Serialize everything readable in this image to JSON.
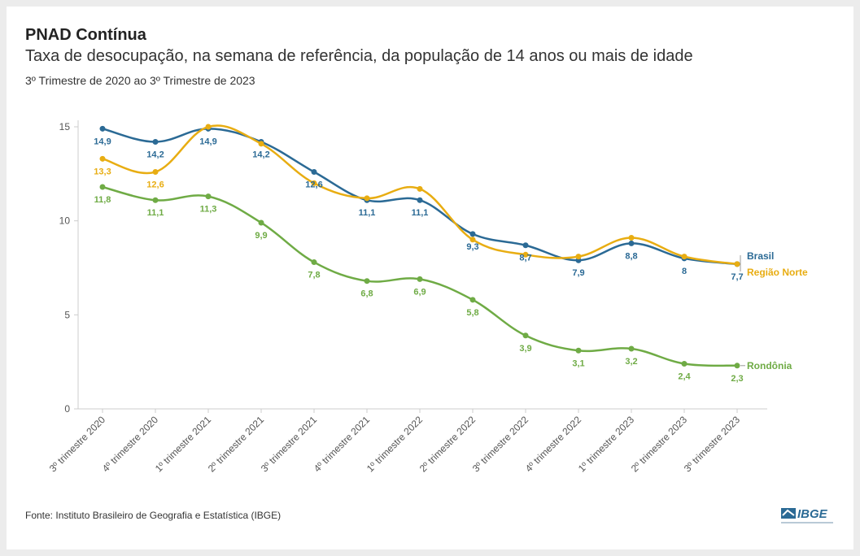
{
  "header": {
    "title": "PNAD Contínua",
    "subtitle": "Taxa de desocupação, na semana de referência, da população de 14 anos ou mais de idade",
    "period": "3º Trimestre de 2020 ao 3º Trimestre de 2023"
  },
  "footer": {
    "source": "Fonte: Instituto Brasileiro de Geografia e Estatística (IBGE)",
    "logo_text": "IBGE"
  },
  "chart_data": {
    "type": "line",
    "categories": [
      "3º trimestre 2020",
      "4º trimestre 2020",
      "1º trimestre 2021",
      "2º trimestre 2021",
      "3º trimestre 2021",
      "4º trimestre 2021",
      "1º trimestre 2022",
      "2º trimestre 2022",
      "3º trimestre 2022",
      "4º trimestre 2022",
      "1º trimestre 2023",
      "2º trimestre 2023",
      "3º trimestre 2023"
    ],
    "ylim": [
      0,
      15
    ],
    "yticks": [
      0,
      5,
      10,
      15
    ],
    "series": [
      {
        "name": "Brasil",
        "color": "#2b6a95",
        "values": [
          14.9,
          14.2,
          14.9,
          14.2,
          12.6,
          11.1,
          11.1,
          9.3,
          8.7,
          7.9,
          8.8,
          8.0,
          7.7
        ],
        "labels": [
          "14,9",
          "14,2",
          "14,9",
          "14,2",
          "12,6",
          "11,1",
          "11,1",
          "9,3",
          "8,7",
          "7,9",
          "8,8",
          "8",
          "7,7"
        ]
      },
      {
        "name": "Região Norte",
        "color": "#e8ad12",
        "values": [
          13.3,
          12.6,
          15.0,
          14.1,
          12.0,
          11.2,
          11.7,
          9.0,
          8.2,
          8.1,
          9.1,
          8.1,
          7.7
        ],
        "labels": [
          "13,3",
          "12,6",
          "",
          "",
          "",
          "",
          "",
          "",
          "",
          "",
          "",
          "",
          ""
        ]
      },
      {
        "name": "Rondônia",
        "color": "#6fab45",
        "values": [
          11.8,
          11.1,
          11.3,
          9.9,
          7.8,
          6.8,
          6.9,
          5.8,
          3.9,
          3.1,
          3.2,
          2.4,
          2.3
        ],
        "labels": [
          "11,8",
          "11,1",
          "11,3",
          "9,9",
          "7,8",
          "6,8",
          "6,9",
          "5,8",
          "3,9",
          "3,1",
          "3,2",
          "2,4",
          "2,3"
        ]
      }
    ],
    "legend": "end-of-line"
  }
}
